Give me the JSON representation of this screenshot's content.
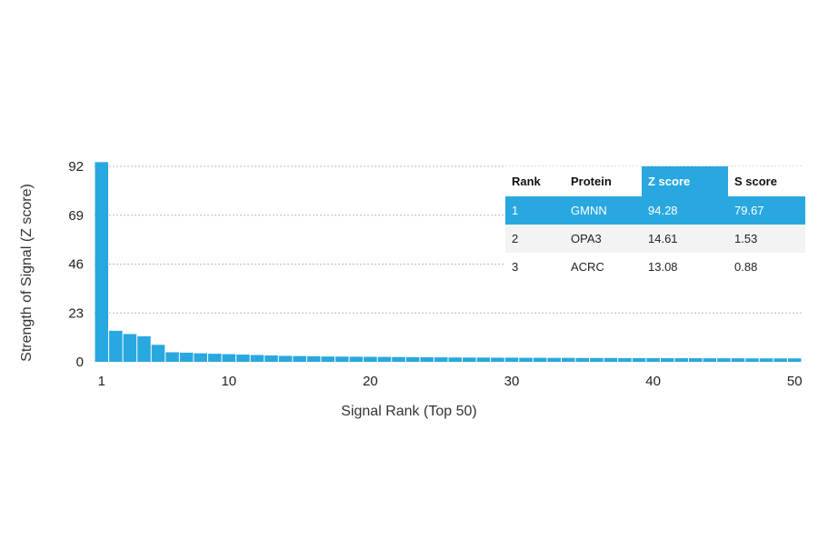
{
  "chart_data": {
    "type": "bar",
    "xlabel": "Signal Rank (Top 50)",
    "ylabel": "Strength of Signal (Z score)",
    "yticks": [
      0,
      23,
      46,
      69,
      92
    ],
    "xticks": [
      1,
      10,
      20,
      30,
      40,
      50
    ],
    "ylim": [
      0,
      92
    ],
    "xlim": [
      1,
      50
    ],
    "grid": "horizontal dashed",
    "x": [
      1,
      2,
      3,
      4,
      5,
      6,
      7,
      8,
      9,
      10,
      11,
      12,
      13,
      14,
      15,
      16,
      17,
      18,
      19,
      20,
      21,
      22,
      23,
      24,
      25,
      26,
      27,
      28,
      29,
      30,
      31,
      32,
      33,
      34,
      35,
      36,
      37,
      38,
      39,
      40,
      41,
      42,
      43,
      44,
      45,
      46,
      47,
      48,
      49,
      50
    ],
    "values": [
      94.28,
      14.61,
      13.08,
      12.0,
      8.0,
      4.5,
      4.3,
      4.0,
      3.8,
      3.6,
      3.4,
      3.2,
      3.0,
      2.8,
      2.7,
      2.6,
      2.5,
      2.45,
      2.4,
      2.35,
      2.3,
      2.25,
      2.2,
      2.15,
      2.1,
      2.05,
      2.0,
      2.0,
      1.95,
      1.95,
      1.9,
      1.9,
      1.85,
      1.85,
      1.8,
      1.8,
      1.8,
      1.75,
      1.75,
      1.75,
      1.7,
      1.7,
      1.7,
      1.65,
      1.65,
      1.65,
      1.6,
      1.6,
      1.6,
      1.6
    ],
    "colors": {
      "bar": "#29a8e0",
      "highlight": "#29a8e0"
    }
  },
  "table": {
    "headers": [
      "Rank",
      "Protein",
      "Z score",
      "S score"
    ],
    "rows": [
      [
        "1",
        "GMNN",
        "94.28",
        "79.67"
      ],
      [
        "2",
        "OPA3",
        "14.61",
        "1.53"
      ],
      [
        "3",
        "ACRC",
        "13.08",
        "0.88"
      ]
    ]
  }
}
